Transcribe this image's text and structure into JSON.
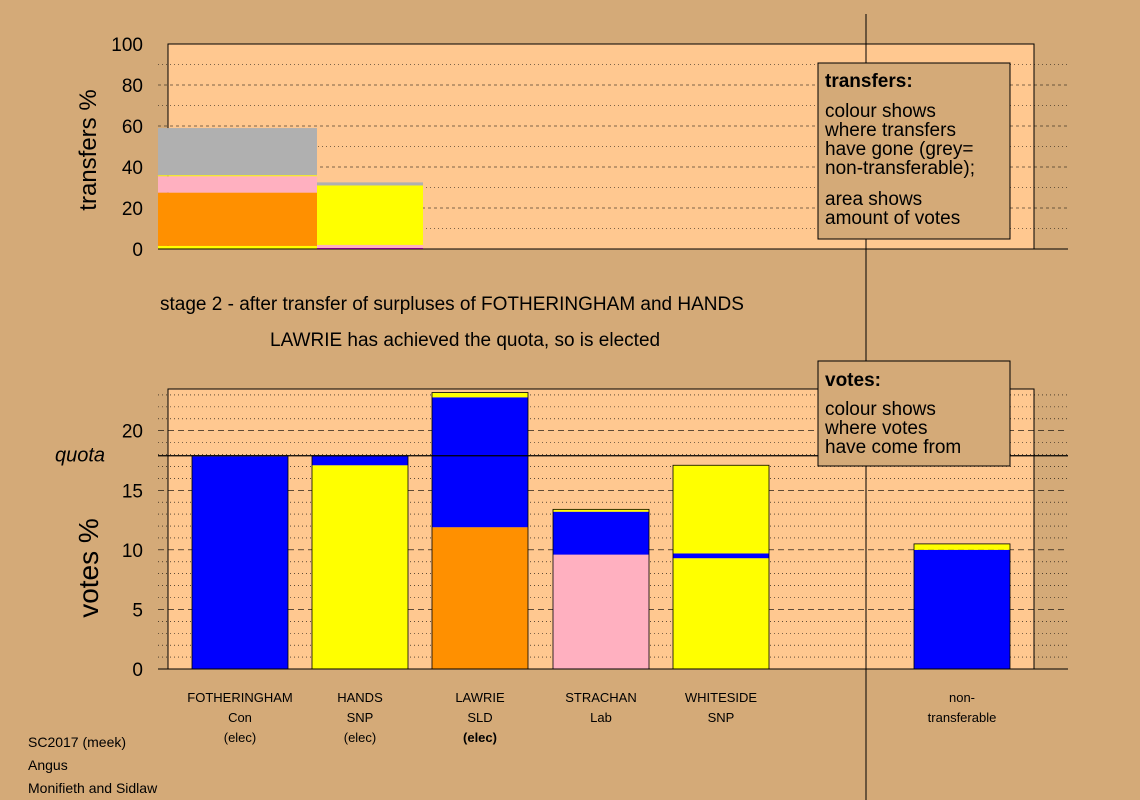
{
  "chart_data": [
    {
      "type": "bar",
      "stacked": true,
      "ylabel": "transfers %",
      "ylim": [
        0,
        100
      ],
      "yticks": [
        0,
        20,
        40,
        60,
        80,
        100
      ],
      "legend": {
        "title": "transfers:",
        "lines": [
          "colour shows",
          "where transfers",
          "have gone (grey=",
          "non-transferable);",
          "area shows",
          "amount of votes"
        ]
      },
      "bars": [
        {
          "source": "FOTHERINGHAM",
          "width_share": 0.6,
          "segments": [
            {
              "color": "#ffff00",
              "value": 1.5
            },
            {
              "color": "#ff9000",
              "value": 26
            },
            {
              "color": "#ffb0c0",
              "value": 8
            },
            {
              "color": "#ffff00",
              "value": 0.5
            },
            {
              "color": "#b0b0b0",
              "value": 23
            }
          ]
        },
        {
          "source": "HANDS",
          "width_share": 0.4,
          "segments": [
            {
              "color": "#ff00ff",
              "value": 0.5
            },
            {
              "color": "#ffb0c0",
              "value": 1.5
            },
            {
              "color": "#ffff00",
              "value": 29
            },
            {
              "color": "#b0b0b0",
              "value": 1.5
            }
          ]
        }
      ]
    },
    {
      "type": "bar",
      "stacked": true,
      "ylabel": "votes %",
      "ylim": [
        0,
        23.5
      ],
      "yticks": [
        0,
        5,
        10,
        15,
        20
      ],
      "quota": 17.9,
      "quota_label": "quota",
      "legend": {
        "title": "votes:",
        "lines": [
          "colour shows",
          "where votes",
          "have come from"
        ]
      },
      "categories": [
        {
          "name": "FOTHERINGHAM",
          "party": "Con",
          "status": "(elec)",
          "bold_status": false
        },
        {
          "name": "HANDS",
          "party": "SNP",
          "status": "(elec)",
          "bold_status": false
        },
        {
          "name": "LAWRIE",
          "party": "SLD",
          "status": "(elec)",
          "bold_status": true
        },
        {
          "name": "STRACHAN",
          "party": "Lab",
          "status": "",
          "bold_status": false
        },
        {
          "name": "WHITESIDE",
          "party": "SNP",
          "status": "",
          "bold_status": false
        },
        {
          "name": "non-",
          "party": "transferable",
          "status": "",
          "bold_status": false
        }
      ],
      "series": [
        {
          "color": "#0000ff",
          "values": [
            17.8,
            0,
            0,
            0,
            0,
            10.0
          ]
        },
        {
          "color": "#ffff00",
          "values": [
            0,
            17.1,
            0,
            0,
            9.3,
            0
          ]
        },
        {
          "color": "#ff9000",
          "values": [
            0,
            0,
            11.9,
            0,
            0,
            0
          ]
        },
        {
          "color": "#ffb0c0",
          "values": [
            0,
            0,
            0,
            9.6,
            0,
            0
          ]
        },
        {
          "color": "#0000ff",
          "values": [
            0.1,
            0.8,
            10.9,
            3.6,
            0.4,
            0
          ]
        },
        {
          "color": "#ffff00",
          "values": [
            0,
            0,
            0.4,
            0.2,
            7.4,
            0.5
          ]
        }
      ]
    }
  ],
  "captions": {
    "stage": "stage 2 - after transfer of surpluses of FOTHERINGHAM and HANDS",
    "elected": "LAWRIE has achieved the quota, so is elected"
  },
  "footer": {
    "line1": "SC2017 (meek)",
    "line2": "Angus",
    "line3": "Monifieth and Sidlaw"
  },
  "colors": {
    "background": "#d4aa78",
    "plot_area": "#ffc890"
  }
}
